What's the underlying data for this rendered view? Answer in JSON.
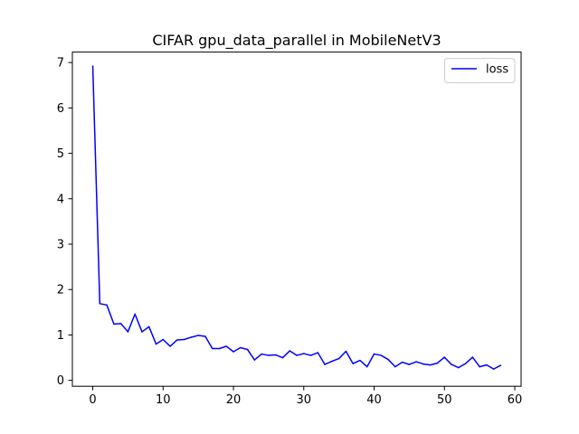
{
  "chart_data": {
    "type": "line",
    "title": "CIFAR gpu_data_parallel in MobileNetV3",
    "xlabel": "",
    "ylabel": "",
    "xlim": [
      -2.9,
      60.9
    ],
    "ylim": [
      -0.13,
      7.23
    ],
    "xticks": [
      0,
      10,
      20,
      30,
      40,
      50,
      60
    ],
    "yticks": [
      0,
      1,
      2,
      3,
      4,
      5,
      6,
      7
    ],
    "grid": false,
    "legend_position": "upper right",
    "series": [
      {
        "name": "loss",
        "color": "#0000ff",
        "x": [
          0,
          1,
          2,
          3,
          4,
          5,
          6,
          7,
          8,
          9,
          10,
          11,
          12,
          13,
          14,
          15,
          16,
          17,
          18,
          19,
          20,
          21,
          22,
          23,
          24,
          25,
          26,
          27,
          28,
          29,
          30,
          31,
          32,
          33,
          34,
          35,
          36,
          37,
          38,
          39,
          40,
          41,
          42,
          43,
          44,
          45,
          46,
          47,
          48,
          49,
          50,
          51,
          52,
          53,
          54,
          55,
          56,
          57,
          58
        ],
        "y": [
          6.92,
          1.69,
          1.66,
          1.24,
          1.25,
          1.07,
          1.46,
          1.07,
          1.18,
          0.8,
          0.9,
          0.75,
          0.89,
          0.9,
          0.95,
          0.99,
          0.97,
          0.7,
          0.7,
          0.75,
          0.63,
          0.72,
          0.68,
          0.45,
          0.58,
          0.55,
          0.56,
          0.5,
          0.65,
          0.55,
          0.59,
          0.55,
          0.61,
          0.35,
          0.42,
          0.48,
          0.64,
          0.37,
          0.44,
          0.3,
          0.58,
          0.55,
          0.46,
          0.3,
          0.4,
          0.35,
          0.41,
          0.36,
          0.34,
          0.38,
          0.51,
          0.35,
          0.28,
          0.37,
          0.51,
          0.3,
          0.34,
          0.25,
          0.33
        ]
      }
    ]
  }
}
